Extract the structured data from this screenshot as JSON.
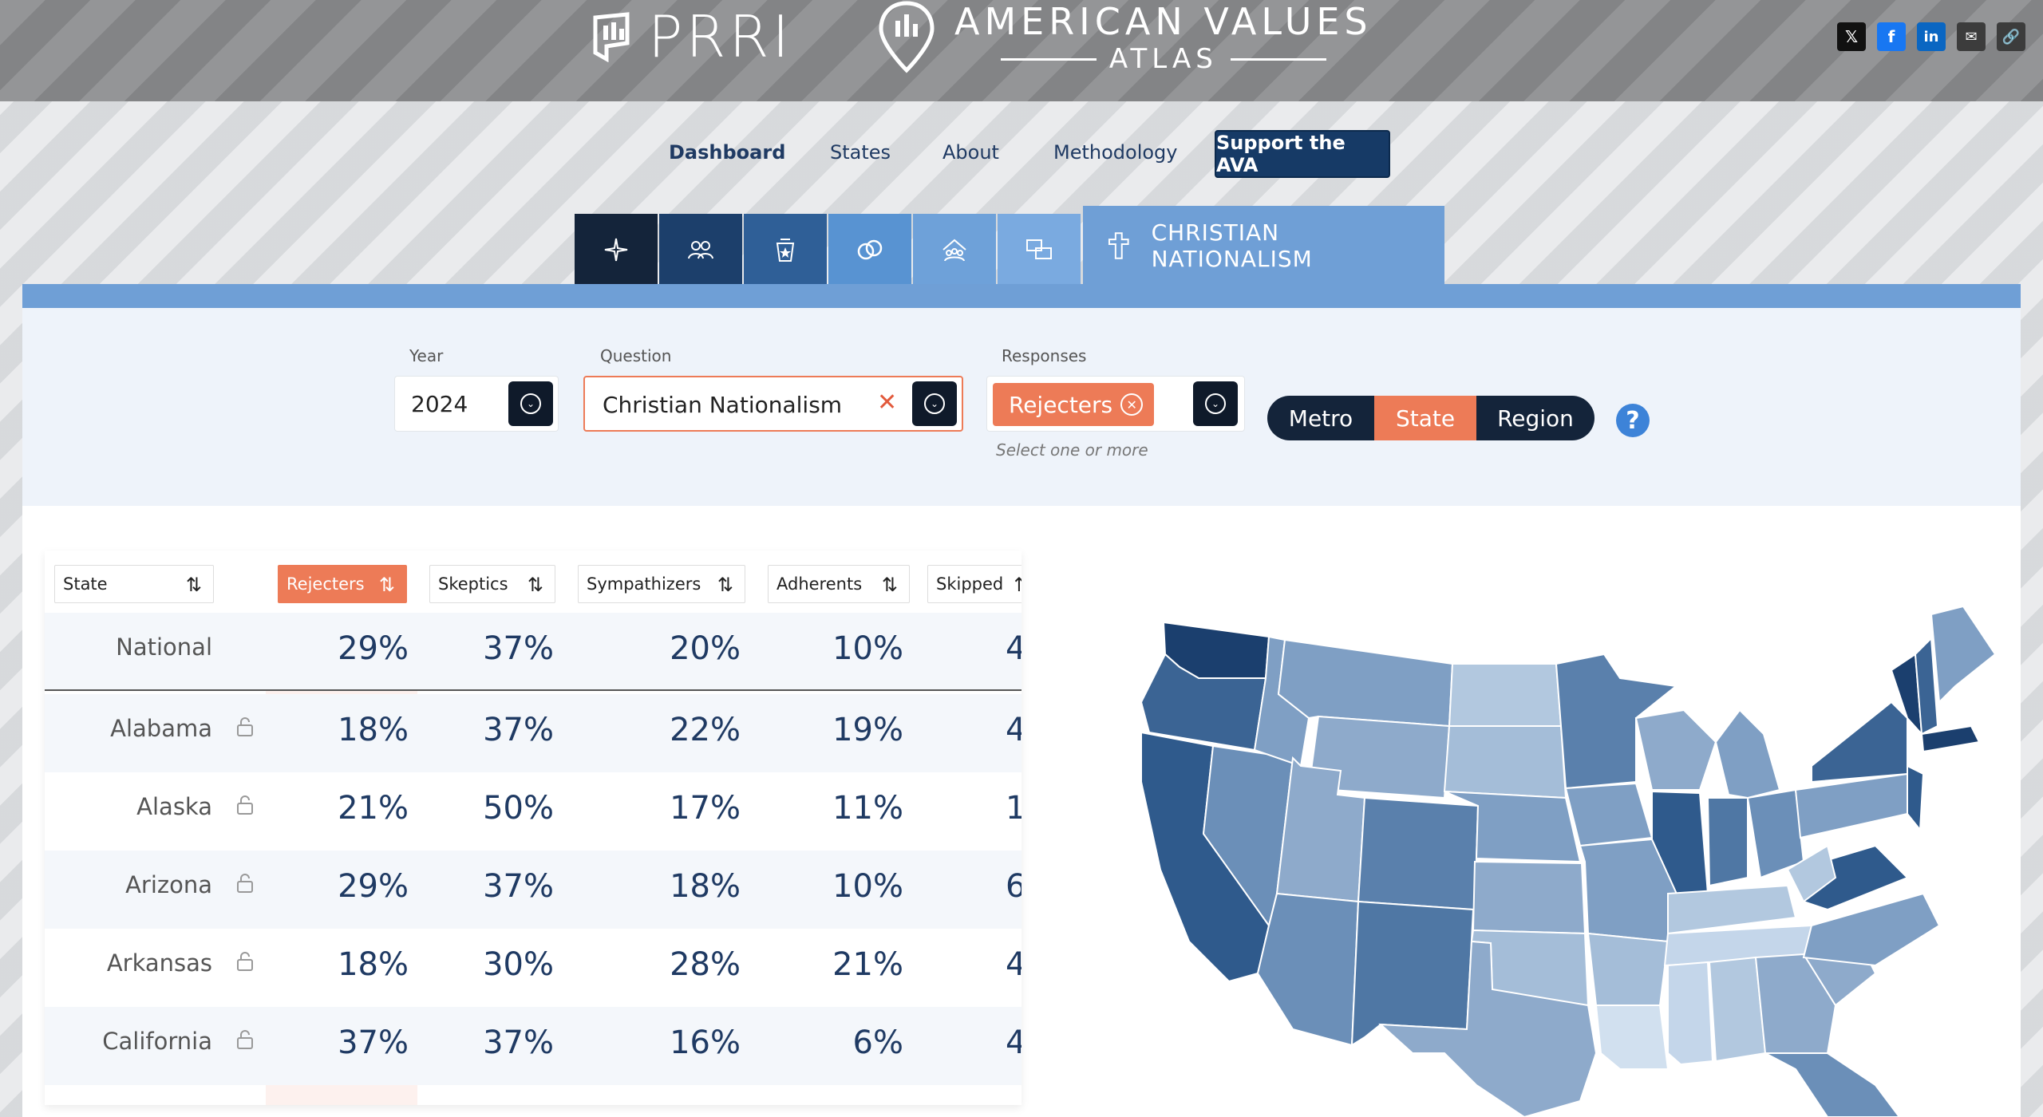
{
  "header": {
    "prri_logo": "PRRI",
    "ava_title": "AMERICAN VALUES",
    "ava_subtitle": "ATLAS",
    "share_icons": [
      "x-icon",
      "facebook-icon",
      "linkedin-icon",
      "email-icon",
      "link-icon"
    ]
  },
  "nav": {
    "items": [
      "Dashboard",
      "States",
      "About",
      "Methodology"
    ],
    "active": "Dashboard",
    "support_label": "Support the AVA"
  },
  "tabs": {
    "icons": [
      "sparkle-icon",
      "people-icon",
      "religion-icon",
      "rings-icon",
      "family-icon",
      "chat-icon"
    ],
    "colors": [
      "#14243a",
      "#1c3f6b",
      "#2f5f97",
      "#5893d2",
      "#6ea1d9",
      "#7aaae0"
    ],
    "active_label": "CHRISTIAN NATIONALISM",
    "active_icon": "cross-icon"
  },
  "filters": {
    "year_label": "Year",
    "year_value": "2024",
    "question_label": "Question",
    "question_value": "Christian Nationalism",
    "responses_label": "Responses",
    "responses_chip": "Rejecters",
    "responses_hint": "Select one or more",
    "geo_options": [
      "Metro",
      "State",
      "Region"
    ],
    "geo_selected": "State",
    "help": "?"
  },
  "table": {
    "columns": [
      "State",
      "Rejecters",
      "Skeptics",
      "Sympathizers",
      "Adherents",
      "Skipped"
    ],
    "sorted_column": "Rejecters",
    "national": {
      "name": "National",
      "values": [
        "29%",
        "37%",
        "20%",
        "10%",
        "4"
      ]
    },
    "rows": [
      {
        "name": "Alabama",
        "values": [
          "18%",
          "37%",
          "22%",
          "19%",
          "4"
        ]
      },
      {
        "name": "Alaska",
        "values": [
          "21%",
          "50%",
          "17%",
          "11%",
          "1"
        ]
      },
      {
        "name": "Arizona",
        "values": [
          "29%",
          "37%",
          "18%",
          "10%",
          "6"
        ]
      },
      {
        "name": "Arkansas",
        "values": [
          "18%",
          "30%",
          "28%",
          "21%",
          "4"
        ]
      },
      {
        "name": "California",
        "values": [
          "37%",
          "37%",
          "16%",
          "6%",
          "4"
        ]
      }
    ]
  },
  "map": {
    "colors": {
      "darkest": "#1b3f6e",
      "dark": "#3b6494",
      "mid": "#6b8fb8",
      "light": "#8eaacb",
      "lighter": "#b2c8df",
      "lightest": "#d1e0ef"
    }
  }
}
